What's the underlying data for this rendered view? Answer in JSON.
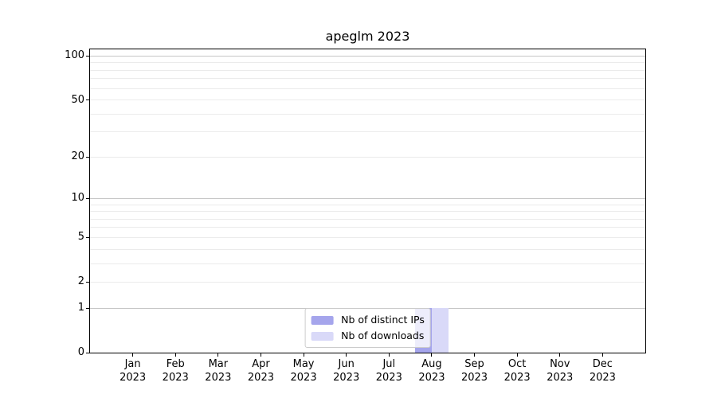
{
  "title": "apeglm 2023",
  "colors": {
    "bar_distinct_ips": "#a5a5ec",
    "bar_downloads": "#d9d9f8",
    "grid_major": "#c6c6c6",
    "grid_minor": "#ebebeb",
    "axis": "#000000",
    "legend_border": "#cccccc",
    "background": "#ffffff"
  },
  "legend": {
    "entries": [
      {
        "label": "Nb of distinct IPs",
        "swatch_color": "#a5a5ec"
      },
      {
        "label": "Nb of downloads",
        "swatch_color": "#d9d9f8"
      }
    ],
    "position": "lower center"
  },
  "chart_data": {
    "type": "bar",
    "title": "apeglm 2023",
    "categories": [
      "Jan 2023",
      "Feb 2023",
      "Mar 2023",
      "Apr 2023",
      "May 2023",
      "Jun 2023",
      "Jul 2023",
      "Aug 2023",
      "Sep 2023",
      "Oct 2023",
      "Nov 2023",
      "Dec 2023"
    ],
    "series": [
      {
        "name": "Nb of distinct IPs",
        "color": "#a5a5ec",
        "values": [
          0,
          0,
          0,
          0,
          0,
          0,
          0,
          1,
          0,
          0,
          0,
          0
        ]
      },
      {
        "name": "Nb of downloads",
        "color": "#d9d9f8",
        "values": [
          0,
          0,
          0,
          0,
          0,
          0,
          0,
          1,
          0,
          0,
          0,
          0
        ]
      }
    ],
    "xlabel": "",
    "ylabel": "",
    "y_scale": "log10(1+y)",
    "ylim": [
      0,
      111
    ],
    "y_ticks": [
      0,
      1,
      2,
      5,
      10,
      20,
      50,
      100
    ],
    "y_grid_major": [
      1,
      10,
      100
    ],
    "y_grid_minor": [
      2,
      3,
      4,
      5,
      6,
      7,
      8,
      9,
      20,
      30,
      40,
      50,
      60,
      70,
      80,
      90
    ],
    "grid": true,
    "legend_position": "lower center"
  }
}
